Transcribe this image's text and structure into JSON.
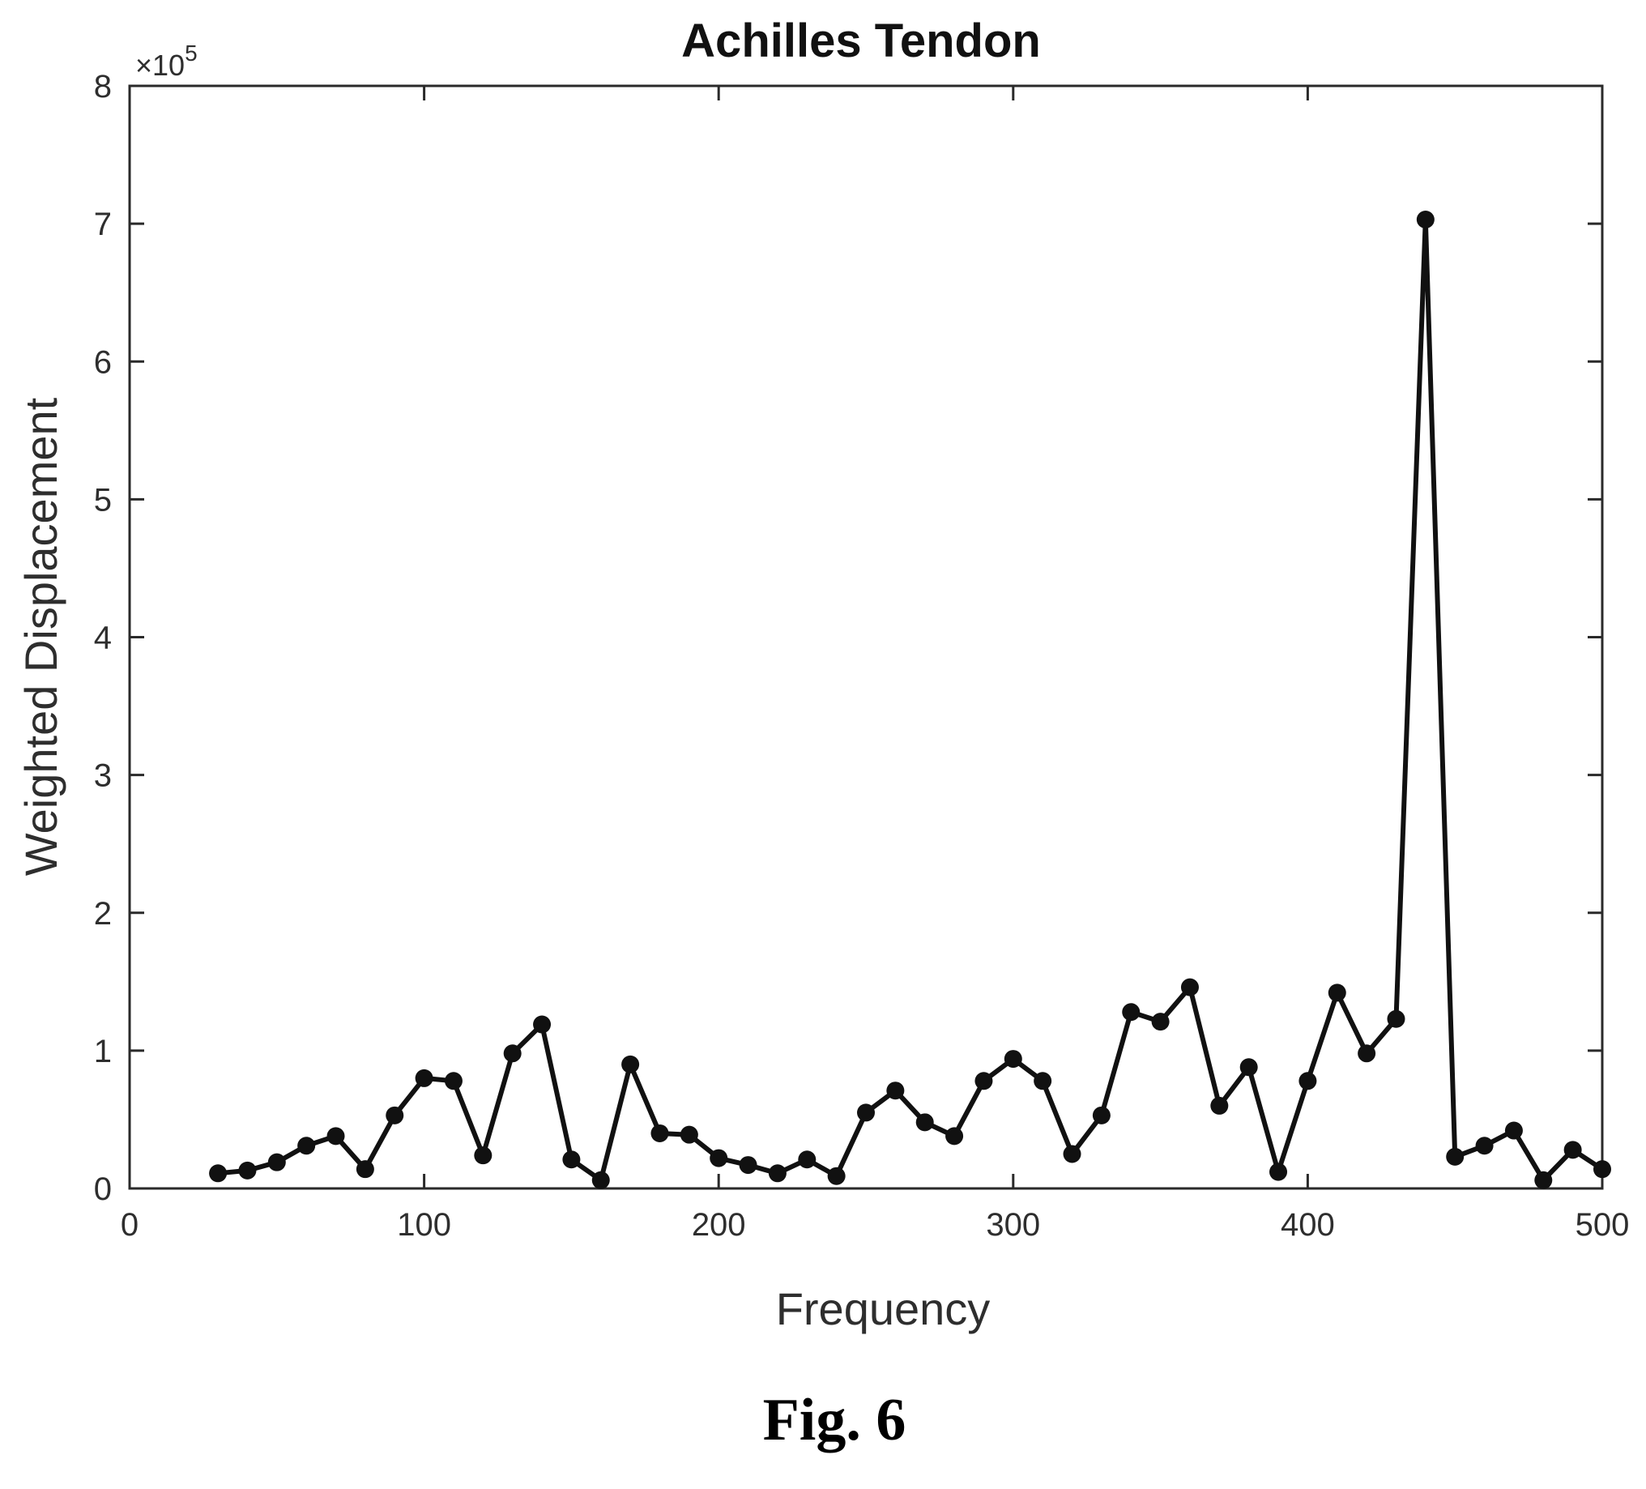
{
  "figure": {
    "caption": "Fig. 6"
  },
  "chart_data": {
    "type": "line",
    "title": "Achilles Tendon",
    "xlabel": "Frequency",
    "ylabel": "Weighted Displacement",
    "y_multiplier": "×10",
    "y_exponent": "5",
    "xlim": [
      0,
      500
    ],
    "ylim": [
      0,
      8
    ],
    "xticks": [
      0,
      100,
      200,
      300,
      400,
      500
    ],
    "yticks": [
      0,
      1,
      2,
      3,
      4,
      5,
      6,
      7,
      8
    ],
    "xtick_labels": [
      "0",
      "100",
      "200",
      "300",
      "400",
      "500"
    ],
    "ytick_labels": [
      "0",
      "1",
      "2",
      "3",
      "4",
      "5",
      "6",
      "7",
      "8"
    ],
    "grid": false,
    "marker": "filled-circle",
    "line_color": "#111111",
    "series": [
      {
        "x": [
          30,
          40,
          50,
          60,
          70,
          80,
          90,
          100,
          110,
          120,
          130,
          140,
          150,
          160,
          170,
          180,
          190,
          200,
          210,
          220,
          230,
          240,
          250,
          260,
          270,
          280,
          290,
          300,
          310,
          320,
          330,
          340,
          350,
          360,
          370,
          380,
          390,
          400,
          410,
          420,
          430,
          440,
          450,
          460,
          470,
          480,
          490,
          500
        ],
        "values": [
          0.11,
          0.13,
          0.19,
          0.31,
          0.38,
          0.14,
          0.53,
          0.8,
          0.78,
          0.24,
          0.98,
          1.19,
          0.21,
          0.06,
          0.9,
          0.4,
          0.39,
          0.22,
          0.17,
          0.11,
          0.21,
          0.09,
          0.55,
          0.71,
          0.48,
          0.38,
          0.78,
          0.94,
          0.78,
          0.25,
          0.53,
          1.28,
          1.21,
          1.46,
          0.6,
          0.88,
          0.12,
          0.78,
          1.42,
          0.98,
          1.23,
          7.03,
          0.23,
          0.31,
          0.42,
          0.06,
          0.28,
          0.14
        ]
      }
    ]
  }
}
